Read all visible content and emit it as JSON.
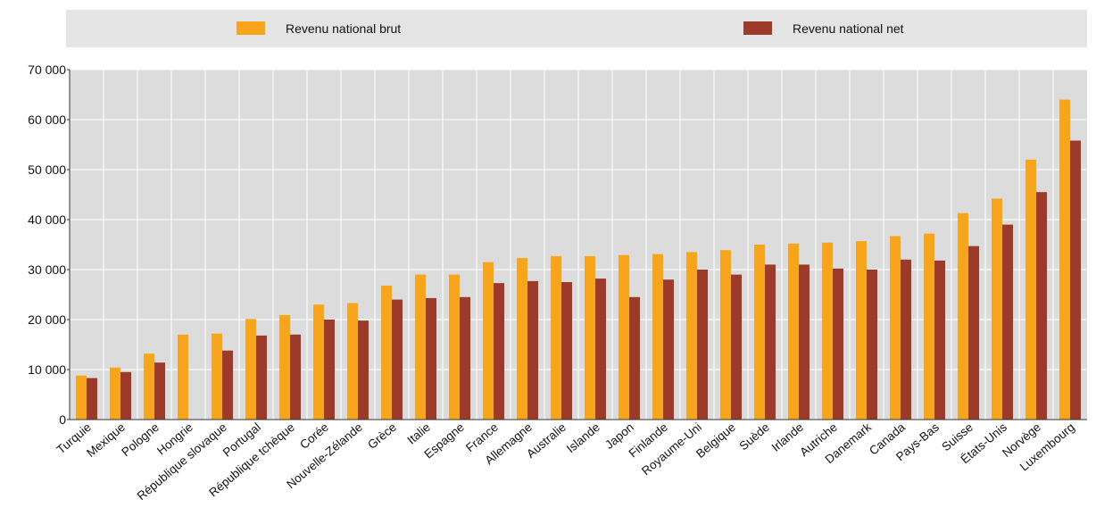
{
  "colors": {
    "gross": "#F7A51C",
    "net": "#9C3B2A",
    "plot_bg": "#DCDCDC",
    "legend_bg": "#E4E4E4",
    "gridline": "#FFFFFF"
  },
  "chart_data": {
    "type": "bar",
    "legend_position": "top",
    "grid": true,
    "ylim": [
      0,
      70000
    ],
    "yticks": [
      0,
      10000,
      20000,
      30000,
      40000,
      50000,
      60000,
      70000
    ],
    "ytick_labels": [
      "0",
      "10 000",
      "20 000",
      "30 000",
      "40 000",
      "50 000",
      "60 000",
      "70 000"
    ],
    "categories": [
      "Turquie",
      "Mexique",
      "Pologne",
      "Hongrie",
      "République slovaque",
      "Portugal",
      "République tchèque",
      "Corée",
      "Nouvelle-Zélande",
      "Grèce",
      "Italie",
      "Espagne",
      "France",
      "Allemagne",
      "Australie",
      "Islande",
      "Japon",
      "Finlande",
      "Royaume-Uni",
      "Belgique",
      "Suède",
      "Irlande",
      "Autriche",
      "Danemark",
      "Canada",
      "Pays-Bas",
      "Suisse",
      "États-Unis",
      "Norvège",
      "Luxembourg"
    ],
    "series": [
      {
        "name": "Revenu national brut",
        "values": [
          8800,
          10400,
          13200,
          17000,
          17200,
          20100,
          20900,
          23000,
          23300,
          26800,
          29000,
          29000,
          31500,
          32300,
          32700,
          32700,
          32900,
          33100,
          33500,
          33900,
          35000,
          35200,
          35400,
          35700,
          36700,
          37200,
          41300,
          44200,
          52000,
          64000
        ]
      },
      {
        "name": "Revenu national net",
        "values": [
          8300,
          9500,
          11400,
          null,
          13800,
          16800,
          17000,
          20000,
          19800,
          24000,
          24300,
          24500,
          27300,
          27700,
          27500,
          28200,
          24500,
          28000,
          30000,
          29000,
          31000,
          31000,
          30200,
          30000,
          32000,
          31800,
          34700,
          39000,
          45500,
          55800
        ]
      }
    ]
  }
}
